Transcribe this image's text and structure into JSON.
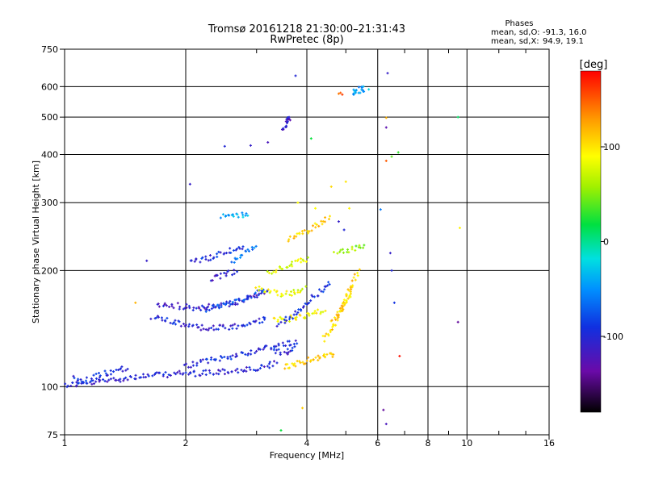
{
  "chart_data": {
    "type": "scatter",
    "title": "Tromsø 20161218 21:30:00–21:31:43",
    "subtitle": "RwPretec (8p)",
    "xlabel": "Frequency [MHz]",
    "ylabel": "Stationary phase Virtual Height [km]",
    "x_scale": "log",
    "y_scale": "log",
    "xlim": [
      1,
      16
    ],
    "ylim": [
      75,
      750
    ],
    "x_ticks": [
      1,
      2,
      4,
      6,
      8,
      10,
      16
    ],
    "x_tick_labels": [
      "1",
      "2",
      "4",
      "6",
      "8",
      "10",
      "16"
    ],
    "x_minor_ticks": [
      3,
      5,
      7,
      9,
      12,
      14
    ],
    "y_ticks": [
      75,
      100,
      200,
      300,
      400,
      500,
      600,
      750
    ],
    "y_tick_labels": [
      "75",
      "100",
      "200",
      "300",
      "400",
      "500",
      "600",
      "750"
    ],
    "grid": true,
    "phase_header": "Phases",
    "phase_stats": [
      {
        "label": "mean, sd,O:",
        "value": "-91.3, 16.0"
      },
      {
        "label": "mean, sd,X:",
        "value": " 94.9, 19.1"
      }
    ],
    "colorbar": {
      "label": "[deg]",
      "min": -180,
      "max": 180,
      "ticks": [
        100,
        0,
        -100
      ],
      "tick_labels": [
        "100",
        "0",
        "-100"
      ]
    },
    "traces": [
      {
        "x": [
          1.0,
          1.15,
          1.3,
          1.5,
          1.7,
          1.9,
          2.1,
          2.4,
          2.7,
          3.0,
          3.2,
          3.4
        ],
        "y": [
          101,
          102,
          104,
          106,
          107,
          108,
          108,
          109,
          110,
          111,
          113,
          116
        ],
        "phase": -105
      },
      {
        "x": [
          2.0,
          2.3,
          2.6,
          2.9,
          3.1,
          3.3,
          3.5,
          3.7
        ],
        "y": [
          113,
          117,
          120,
          123,
          125,
          127,
          129,
          130
        ],
        "phase": -95
      },
      {
        "x": [
          3.5,
          3.7,
          3.9,
          4.1,
          4.3,
          4.5,
          4.7
        ],
        "y": [
          112,
          114,
          116,
          118,
          119,
          120,
          121
        ],
        "phase": 105
      },
      {
        "x": [
          1.65,
          1.9,
          2.2,
          2.5,
          2.8,
          3.0,
          3.2
        ],
        "y": [
          152,
          146,
          142,
          142,
          144,
          147,
          152
        ],
        "phase": -100
      },
      {
        "x": [
          1.7,
          1.9,
          2.1,
          2.3,
          2.6,
          2.9,
          3.2
        ],
        "y": [
          163,
          162,
          160,
          161,
          164,
          170,
          178
        ],
        "phase": -110
      },
      {
        "x": [
          2.2,
          2.45,
          2.7,
          2.95,
          3.2
        ],
        "y": [
          158,
          163,
          168,
          173,
          178
        ],
        "phase": -80
      },
      {
        "x": [
          3.0,
          3.2,
          3.4,
          3.6,
          3.8,
          4.0
        ],
        "y": [
          180,
          176,
          174,
          174,
          176,
          182
        ],
        "phase": 85
      },
      {
        "x": [
          3.3,
          3.6,
          3.9,
          4.2,
          4.5
        ],
        "y": [
          148,
          150,
          152,
          155,
          160
        ],
        "phase": 90
      },
      {
        "x": [
          3.4,
          3.7,
          4.0,
          4.3,
          4.6
        ],
        "y": [
          145,
          153,
          165,
          176,
          188
        ],
        "phase": -95
      },
      {
        "x": [
          4.4,
          4.6,
          4.8,
          5.0,
          5.2
        ],
        "y": [
          132,
          140,
          152,
          165,
          180
        ],
        "phase": 105
      },
      {
        "x": [
          4.6,
          4.8,
          5.0,
          5.2,
          5.4
        ],
        "y": [
          145,
          155,
          170,
          185,
          200
        ],
        "phase": 110
      },
      {
        "x": [
          3.2,
          3.5,
          3.8,
          4.1
        ],
        "y": [
          198,
          204,
          210,
          216
        ],
        "phase": 80
      },
      {
        "x": [
          3.6,
          3.9,
          4.2,
          4.6
        ],
        "y": [
          240,
          250,
          262,
          275
        ],
        "phase": 110
      },
      {
        "x": [
          4.7,
          5.0,
          5.3,
          5.6
        ],
        "y": [
          222,
          226,
          228,
          230
        ],
        "phase": 55
      },
      {
        "x": [
          2.05,
          2.3,
          2.55,
          2.8
        ],
        "y": [
          212,
          216,
          224,
          232
        ],
        "phase": -95
      },
      {
        "x": [
          2.45,
          2.6,
          2.75,
          2.85
        ],
        "y": [
          275,
          276,
          278,
          277
        ],
        "phase": -40
      },
      {
        "x": [
          3.5,
          3.55,
          3.6,
          3.62
        ],
        "y": [
          470,
          480,
          490,
          500
        ],
        "phase": -110
      },
      {
        "x": [
          5.2,
          5.3,
          5.5,
          5.55
        ],
        "y": [
          580,
          585,
          590,
          592
        ],
        "phase": -50
      },
      {
        "x": [
          1.05,
          1.1,
          1.25,
          1.35,
          1.45
        ],
        "y": [
          105,
          103,
          108,
          110,
          112
        ],
        "phase": -95
      },
      {
        "x": [
          2.3,
          2.5,
          2.7
        ],
        "y": [
          190,
          195,
          200
        ],
        "phase": -110
      },
      {
        "x": [
          3.3,
          3.5,
          3.7,
          3.8
        ],
        "y": [
          124,
          122,
          126,
          132
        ],
        "phase": -100
      },
      {
        "x": [
          2.6,
          2.8,
          3.0
        ],
        "y": [
          212,
          222,
          232
        ],
        "phase": -60
      }
    ],
    "points": [
      {
        "x": 4.85,
        "y": 578,
        "phase": 150
      },
      {
        "x": 4.9,
        "y": 572,
        "phase": 160
      },
      {
        "x": 4.8,
        "y": 575,
        "phase": 140
      },
      {
        "x": 3.75,
        "y": 640,
        "phase": -100
      },
      {
        "x": 6.35,
        "y": 650,
        "phase": -110
      },
      {
        "x": 6.3,
        "y": 385,
        "phase": 150
      },
      {
        "x": 6.5,
        "y": 395,
        "phase": 40
      },
      {
        "x": 6.75,
        "y": 405,
        "phase": 30
      },
      {
        "x": 6.3,
        "y": 498,
        "phase": 120
      },
      {
        "x": 6.3,
        "y": 470,
        "phase": -130
      },
      {
        "x": 6.1,
        "y": 288,
        "phase": -60
      },
      {
        "x": 6.45,
        "y": 222,
        "phase": -110
      },
      {
        "x": 6.6,
        "y": 165,
        "phase": -90
      },
      {
        "x": 6.8,
        "y": 120,
        "phase": 175
      },
      {
        "x": 6.5,
        "y": 200,
        "phase": -100
      },
      {
        "x": 6.2,
        "y": 87,
        "phase": -140
      },
      {
        "x": 6.3,
        "y": 80,
        "phase": -120
      },
      {
        "x": 9.5,
        "y": 500,
        "phase": 10
      },
      {
        "x": 9.6,
        "y": 258,
        "phase": 95
      },
      {
        "x": 9.5,
        "y": 147,
        "phase": -140
      },
      {
        "x": 3.45,
        "y": 77,
        "phase": 20
      },
      {
        "x": 3.9,
        "y": 88,
        "phase": 110
      },
      {
        "x": 2.5,
        "y": 420,
        "phase": -100
      },
      {
        "x": 2.9,
        "y": 422,
        "phase": -110
      },
      {
        "x": 3.2,
        "y": 430,
        "phase": -120
      },
      {
        "x": 2.05,
        "y": 335,
        "phase": -110
      },
      {
        "x": 1.6,
        "y": 212,
        "phase": -110
      },
      {
        "x": 1.5,
        "y": 165,
        "phase": 120
      },
      {
        "x": 5.0,
        "y": 340,
        "phase": 100
      },
      {
        "x": 4.6,
        "y": 330,
        "phase": 105
      },
      {
        "x": 3.8,
        "y": 300,
        "phase": 90
      },
      {
        "x": 5.1,
        "y": 290,
        "phase": 95
      },
      {
        "x": 4.8,
        "y": 268,
        "phase": -110
      },
      {
        "x": 4.95,
        "y": 255,
        "phase": -100
      },
      {
        "x": 4.1,
        "y": 440,
        "phase": 20
      },
      {
        "x": 5.7,
        "y": 590,
        "phase": -20
      },
      {
        "x": 4.2,
        "y": 290,
        "phase": 90
      }
    ]
  }
}
